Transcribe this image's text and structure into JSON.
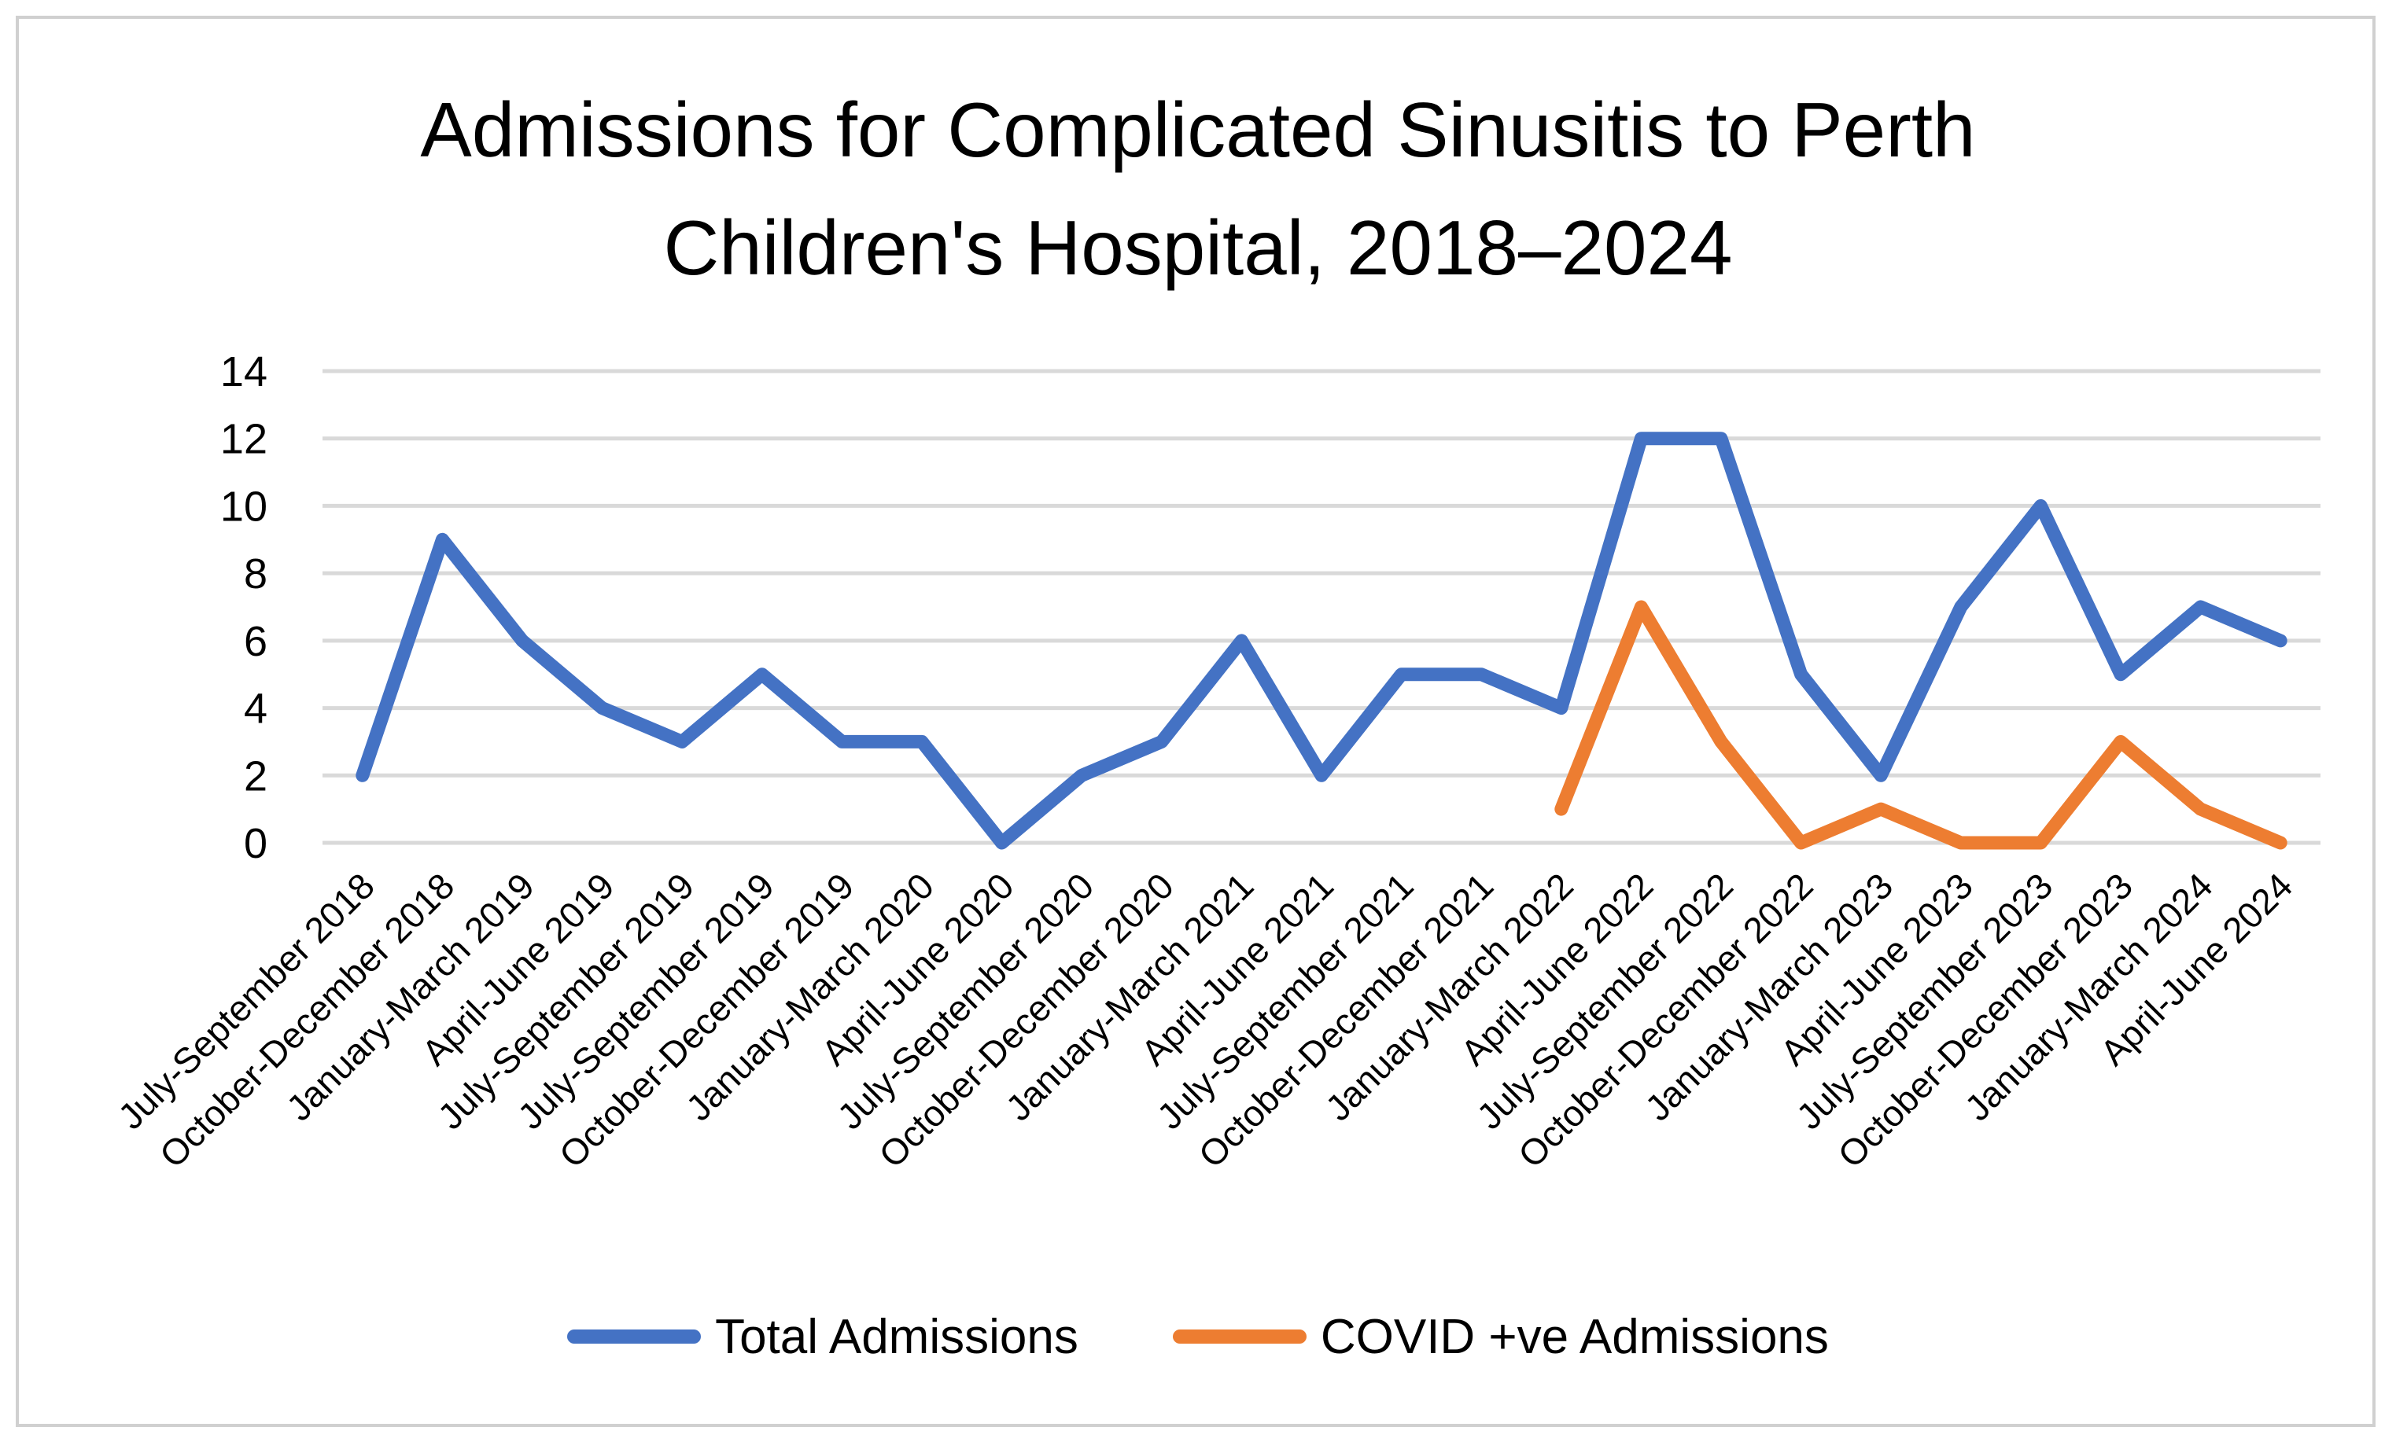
{
  "chart_data": {
    "type": "line",
    "title_lines": [
      "Admissions for Complicated Sinusitis to Perth",
      "Children's Hospital, 2018–2024"
    ],
    "xlabel": "",
    "ylabel": "",
    "ylim": [
      0,
      14
    ],
    "yticks": [
      "0",
      "2",
      "4",
      "6",
      "8",
      "10",
      "12",
      "14"
    ],
    "grid": true,
    "legend_position": "bottom",
    "categories": [
      "July-September 2018",
      "October-December 2018",
      "January-March 2019",
      "April-June 2019",
      "July-September 2019",
      "July-September 2019",
      "October-December 2019",
      "January-March 2020",
      "April-June 2020",
      "July-September 2020",
      "October-December 2020",
      "January-March 2021",
      "April-June 2021",
      "July-September 2021",
      "October-December 2021",
      "January-March 2022",
      "April-June 2022",
      "July-September 2022",
      "October-December 2022",
      "January-March 2023",
      "April-June 2023",
      "July-September 2023",
      "October-December 2023",
      "January-March 2024",
      "April-June 2024"
    ],
    "series": [
      {
        "name": "Total Admissions",
        "color": "#4472C4",
        "values": [
          2,
          9,
          6,
          4,
          3,
          5,
          3,
          3,
          0,
          2,
          3,
          6,
          2,
          5,
          5,
          4,
          12,
          12,
          5,
          2,
          7,
          10,
          5,
          7,
          6
        ]
      },
      {
        "name": "COVID +ve Admissions",
        "color": "#ED7D31",
        "values": [
          null,
          null,
          null,
          null,
          null,
          null,
          null,
          null,
          null,
          null,
          null,
          null,
          null,
          null,
          null,
          1,
          7,
          3,
          0,
          1,
          0,
          0,
          3,
          1,
          0
        ]
      }
    ]
  }
}
